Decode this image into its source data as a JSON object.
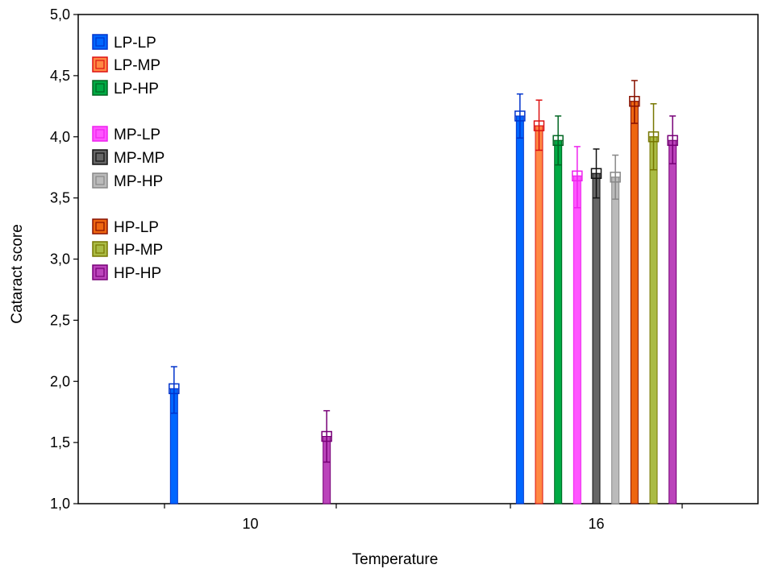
{
  "chart_data": {
    "type": "bar",
    "xlabel": "Temperature",
    "ylabel": "Cataract score",
    "ylim": [
      1.0,
      5.0
    ],
    "y_ticks": [
      1.0,
      1.5,
      2.0,
      2.5,
      3.0,
      3.5,
      4.0,
      4.5,
      5.0
    ],
    "y_tick_labels": [
      "1,0",
      "1,5",
      "2,0",
      "2,5",
      "3,0",
      "3,5",
      "4,0",
      "4,5",
      "5,0"
    ],
    "categories": [
      "10",
      "16"
    ],
    "grid": false,
    "legend_position": "top-left",
    "error_bars": true,
    "series": [
      {
        "name": "LP-LP",
        "color": "#0066ff",
        "dark": "#0033cc",
        "values": [
          1.94,
          4.17
        ],
        "err_low": [
          1.74,
          3.99
        ],
        "err_high": [
          2.12,
          4.35
        ]
      },
      {
        "name": "LP-MP",
        "color": "#ff8844",
        "dark": "#dd1111",
        "values": [
          null,
          4.09
        ],
        "err_low": [
          null,
          3.89
        ],
        "err_high": [
          null,
          4.3
        ]
      },
      {
        "name": "LP-HP",
        "color": "#00aa44",
        "dark": "#006622",
        "values": [
          null,
          3.97
        ],
        "err_low": [
          null,
          3.77
        ],
        "err_high": [
          null,
          4.17
        ]
      },
      {
        "name": "MP-LP",
        "color": "#ff55ff",
        "dark": "#ee22ee",
        "values": [
          null,
          3.68
        ],
        "err_low": [
          null,
          3.42
        ],
        "err_high": [
          null,
          3.92
        ]
      },
      {
        "name": "MP-MP",
        "color": "#666666",
        "dark": "#111111",
        "values": [
          null,
          3.7
        ],
        "err_low": [
          null,
          3.5
        ],
        "err_high": [
          null,
          3.9
        ]
      },
      {
        "name": "MP-HP",
        "color": "#bbbbbb",
        "dark": "#888888",
        "values": [
          null,
          3.67
        ],
        "err_low": [
          null,
          3.49
        ],
        "err_high": [
          null,
          3.85
        ]
      },
      {
        "name": "HP-LP",
        "color": "#ee6611",
        "dark": "#881100",
        "values": [
          null,
          4.29
        ],
        "err_low": [
          null,
          4.11
        ],
        "err_high": [
          null,
          4.46
        ]
      },
      {
        "name": "HP-MP",
        "color": "#aabb44",
        "dark": "#777700",
        "values": [
          null,
          4.0
        ],
        "err_low": [
          null,
          3.73
        ],
        "err_high": [
          null,
          4.27
        ]
      },
      {
        "name": "HP-HP",
        "color": "#bb44bb",
        "dark": "#770077",
        "values": [
          1.55,
          3.97
        ],
        "err_low": [
          1.34,
          3.78
        ],
        "err_high": [
          1.76,
          4.17
        ]
      }
    ]
  }
}
